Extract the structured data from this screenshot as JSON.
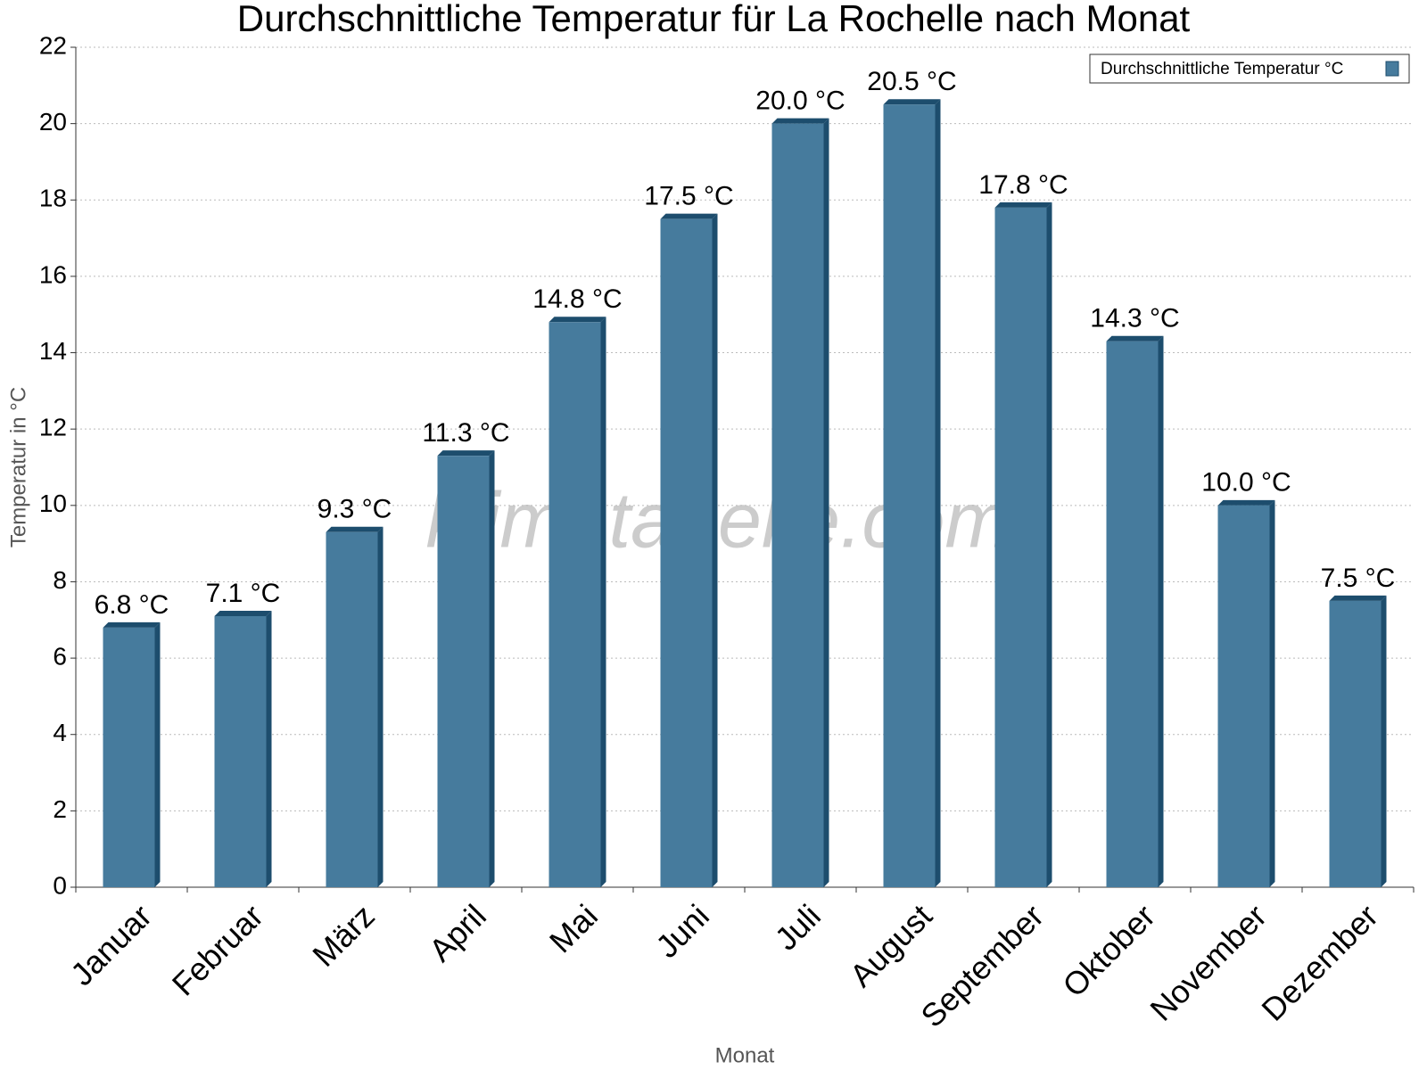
{
  "chart_data": {
    "type": "bar",
    "title": "Durchschnittliche Temperatur für La Rochelle nach Monat",
    "x_label": "Monat",
    "y_label": "Temperatur in °C",
    "watermark": "klimatabelle.com",
    "categories": [
      "Januar",
      "Februar",
      "März",
      "April",
      "Mai",
      "Juni",
      "Juli",
      "August",
      "September",
      "Oktober",
      "November",
      "Dezember"
    ],
    "series": [
      {
        "name": "Durchschnittliche Temperatur °C",
        "color": "#467b9d",
        "values": [
          6.8,
          7.1,
          9.3,
          11.3,
          14.8,
          17.5,
          20.0,
          20.5,
          17.8,
          14.3,
          10.0,
          7.5
        ],
        "value_labels": [
          "6.8 °C",
          "7.1 °C",
          "9.3 °C",
          "11.3 °C",
          "14.8 °C",
          "17.5 °C",
          "20.0 °C",
          "20.5 °C",
          "17.8 °C",
          "14.3 °C",
          "10.0 °C",
          "7.5 °C"
        ]
      }
    ],
    "ylim": [
      0,
      22
    ],
    "yticks": [
      0,
      2,
      4,
      6,
      8,
      10,
      12,
      14,
      16,
      18,
      20,
      22
    ],
    "grid": true,
    "legend": "top-right"
  }
}
